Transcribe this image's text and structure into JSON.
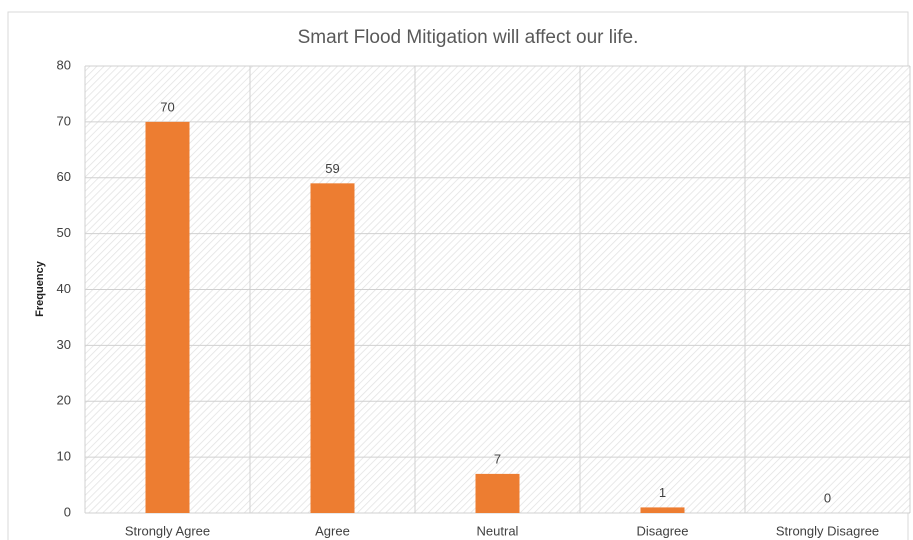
{
  "chart_data": {
    "type": "bar",
    "title": "Smart Flood Mitigation will affect our life.",
    "y_label": "Frequency",
    "categories": [
      "Strongly Agree",
      "Agree",
      "Neutral",
      "Disagree",
      "Strongly Disagree"
    ],
    "values": [
      70,
      59,
      7,
      1,
      0
    ],
    "color": "#ed7d31",
    "ylim": [
      0,
      80
    ],
    "yticks": [
      0,
      10,
      20,
      30,
      40,
      50,
      60,
      70,
      80
    ],
    "grid": true
  }
}
